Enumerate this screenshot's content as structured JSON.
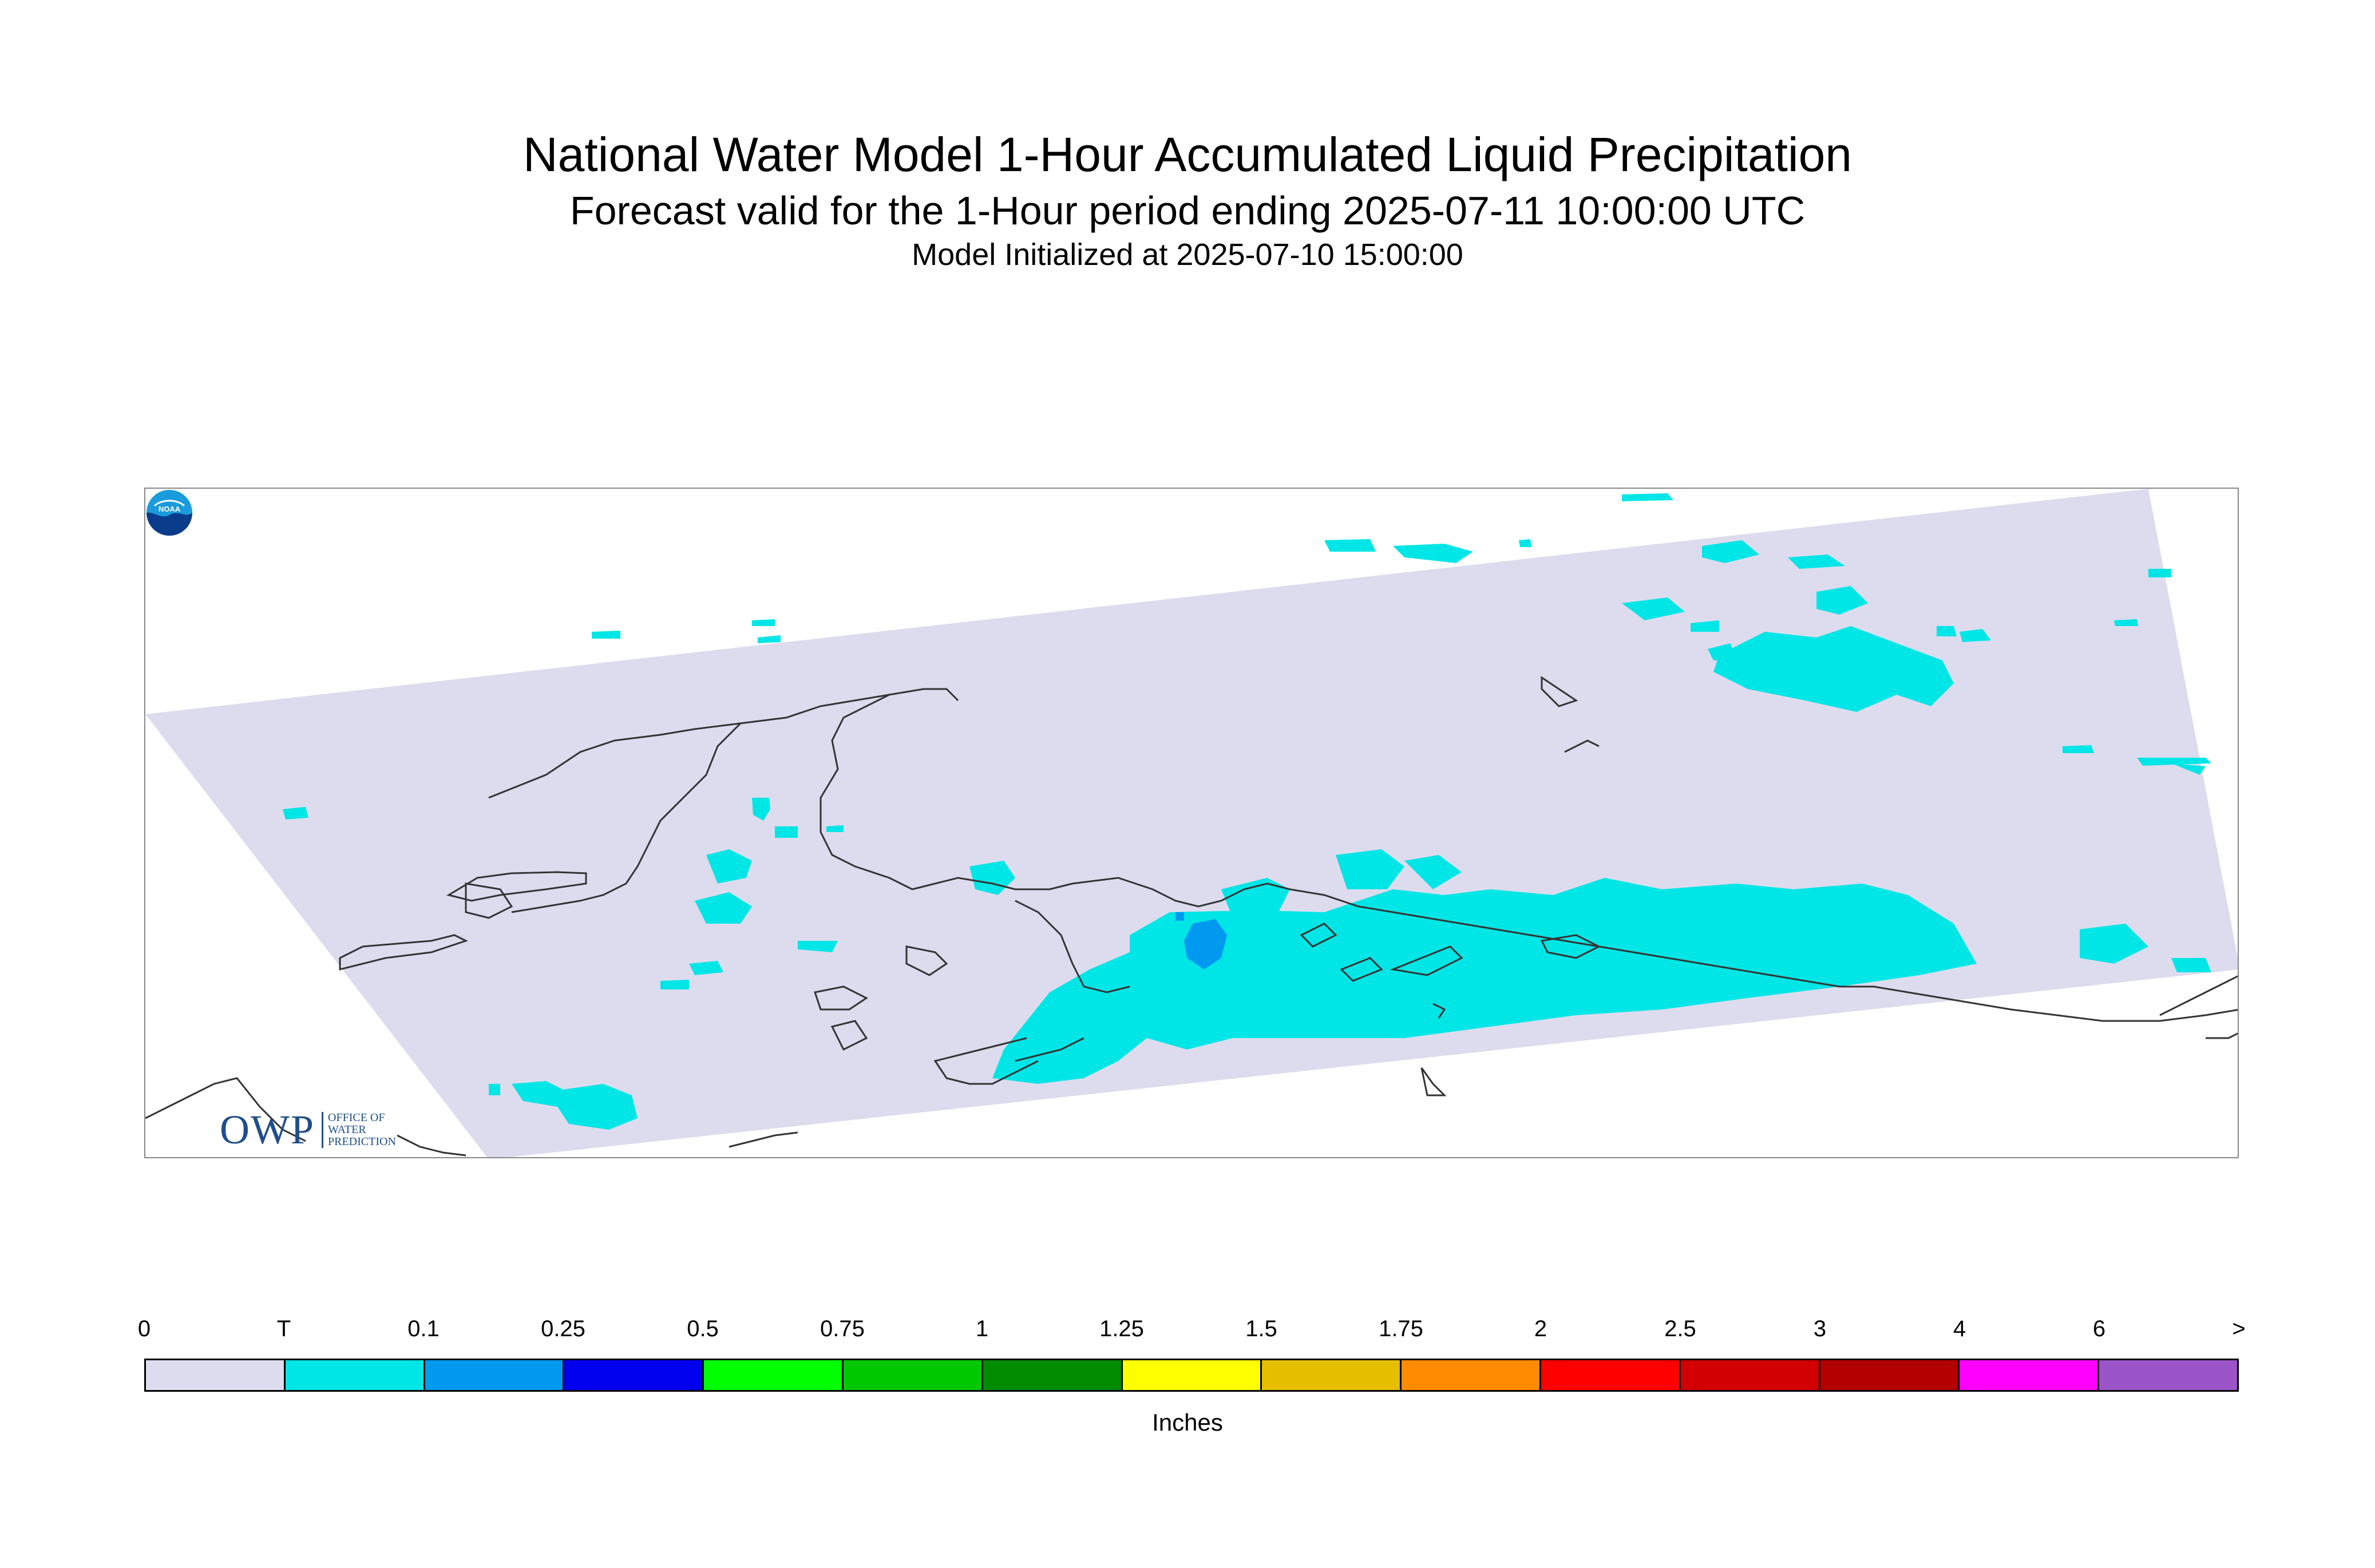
{
  "title": "National Water Model 1-Hour Accumulated Liquid Precipitation",
  "subtitle": "Forecast valid for the 1-Hour period ending 2025-07-11 10:00:00 UTC",
  "init_line": "Model Initialized at 2025-07-10 15:00:00",
  "logos": {
    "owp_letters": "OWP",
    "owp_sub": [
      "OFFICE OF",
      "WATER",
      "PREDICTION"
    ],
    "noaa_text": "NOAA"
  },
  "legend": {
    "labels": [
      "0",
      "T",
      "0.1",
      "0.25",
      "0.5",
      "0.75",
      "1",
      "1.25",
      "1.5",
      "1.75",
      "2",
      "2.5",
      "3",
      "4",
      "6",
      ">"
    ],
    "colors": [
      "#dcdcee",
      "#00e6e6",
      "#0099f0",
      "#0000ee",
      "#00ff00",
      "#00c800",
      "#008c00",
      "#ffff00",
      "#e6be00",
      "#ff8c00",
      "#ff0000",
      "#d20000",
      "#b40000",
      "#ff00ff",
      "#9b55c8"
    ],
    "units": "Inches"
  }
}
